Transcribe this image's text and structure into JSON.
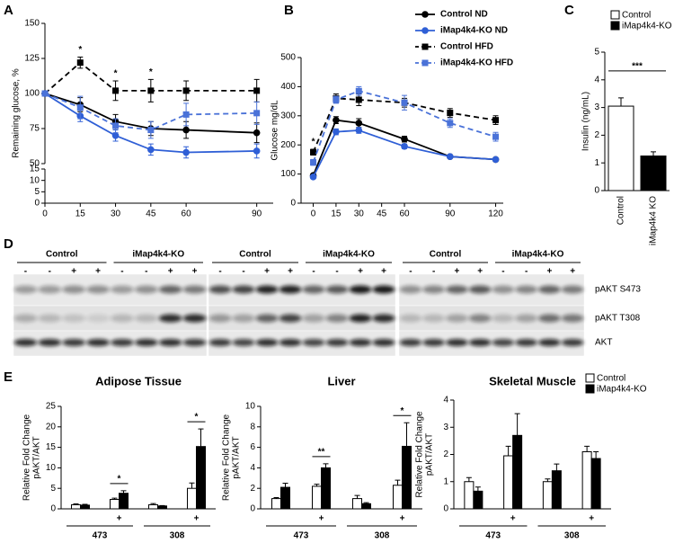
{
  "chart_data": [
    {
      "type": "line",
      "panel": "A",
      "ylabel": "Remaining glucose, %",
      "x": [
        0,
        15,
        30,
        45,
        60,
        90
      ],
      "xlim": [
        0,
        97
      ],
      "xticks": [
        0,
        15,
        30,
        45,
        60,
        90
      ],
      "ylim": [
        50,
        150
      ],
      "yticks": [
        50,
        75,
        100,
        125,
        150
      ],
      "ylim_lower": [
        0,
        15
      ],
      "yticks_lower": [
        0,
        5,
        10,
        15
      ],
      "series": [
        {
          "color": "#000000",
          "marker": "circle",
          "dash": false,
          "values": [
            100,
            92,
            80,
            75,
            74,
            72
          ],
          "errors": [
            0,
            5,
            5,
            5,
            6,
            7
          ]
        },
        {
          "color": "#2f5fd6",
          "marker": "circle",
          "dash": false,
          "values": [
            100,
            84,
            70,
            60,
            58,
            59
          ],
          "errors": [
            0,
            4,
            4,
            4,
            4,
            5
          ]
        },
        {
          "color": "#000000",
          "marker": "square",
          "dash": true,
          "values": [
            100,
            122,
            102,
            102,
            102,
            102
          ],
          "errors": [
            0,
            4,
            7,
            8,
            7,
            8
          ]
        },
        {
          "color": "#4a72d8",
          "marker": "square",
          "dash": true,
          "values": [
            100,
            90,
            77,
            74,
            85,
            86
          ],
          "errors": [
            0,
            8,
            5,
            6,
            8,
            8
          ]
        }
      ],
      "significance": [
        {
          "label": "*",
          "x": 15
        },
        {
          "label": "*",
          "x": 30
        },
        {
          "label": "*",
          "x": 45
        }
      ]
    },
    {
      "type": "line",
      "panel": "B",
      "ylabel": "Glucose mg/dL",
      "x": [
        0,
        15,
        30,
        60,
        90,
        120
      ],
      "xlim": [
        -8,
        125
      ],
      "xticks": [
        0,
        15,
        30,
        45,
        60,
        90,
        120
      ],
      "ylim": [
        0,
        500
      ],
      "yticks": [
        0,
        100,
        200,
        300,
        400,
        500
      ],
      "legend": "top-right",
      "series": [
        {
          "name": "Control ND",
          "color": "#000000",
          "marker": "circle",
          "dash": false,
          "values": [
            95,
            285,
            275,
            220,
            160,
            150
          ],
          "errors": [
            5,
            12,
            15,
            10,
            5,
            5
          ]
        },
        {
          "name": "iMap4k4-KO ND",
          "color": "#2f5fd6",
          "marker": "circle",
          "dash": false,
          "values": [
            90,
            245,
            250,
            195,
            160,
            150
          ],
          "errors": [
            5,
            10,
            10,
            8,
            5,
            5
          ]
        },
        {
          "name": "Control HFD",
          "color": "#000000",
          "marker": "square",
          "dash": true,
          "values": [
            175,
            360,
            355,
            345,
            310,
            285
          ],
          "errors": [
            10,
            15,
            20,
            15,
            15,
            15
          ]
        },
        {
          "name": "iMap4k4-KO HFD",
          "color": "#4a72d8",
          "marker": "square",
          "dash": true,
          "values": [
            140,
            355,
            385,
            345,
            275,
            228
          ],
          "errors": [
            10,
            12,
            15,
            25,
            15,
            15
          ]
        }
      ],
      "significance": [
        {
          "label": "*",
          "x": 0
        }
      ]
    },
    {
      "type": "bar",
      "panel": "C",
      "ylabel": "Insulin (ng/mL)",
      "categories": [
        "Control",
        "iMap4k4 KO"
      ],
      "ylim": [
        0,
        5
      ],
      "yticks": [
        0,
        1,
        2,
        3,
        4,
        5
      ],
      "legend": "top-right",
      "series": [
        {
          "name": "Control",
          "color": "#ffffff",
          "values": [
            3.05,
            null
          ],
          "errors": [
            0.3,
            null
          ]
        },
        {
          "name": "iMap4k4-KO",
          "color": "#000000",
          "values": [
            null,
            1.25
          ],
          "errors": [
            null,
            0.15
          ]
        }
      ],
      "significance": [
        {
          "label": "***",
          "from": 0,
          "to": 1
        }
      ]
    },
    {
      "type": "bar",
      "panel": "E",
      "title": "Adipose Tissue",
      "ylabel": [
        "Relative Fold Change",
        "pAKT/AKT"
      ],
      "categories": [
        null,
        "+",
        null,
        "+"
      ],
      "groups": [
        "473",
        "308"
      ],
      "ylim": [
        0,
        25
      ],
      "yticks": [
        0,
        5,
        10,
        15,
        20,
        25
      ],
      "series": [
        {
          "color": "#ffffff",
          "values": [
            1.0,
            2.3,
            1.0,
            5.0
          ],
          "errors": [
            0.2,
            0.3,
            0.3,
            1.3
          ]
        },
        {
          "color": "#000000",
          "values": [
            0.9,
            3.8,
            0.7,
            15.2
          ],
          "errors": [
            0.2,
            0.6,
            0.1,
            4.3
          ]
        }
      ],
      "significance": [
        {
          "label": "*",
          "from": 1,
          "to": 1
        },
        {
          "label": "*",
          "from": 3,
          "to": 3
        }
      ]
    },
    {
      "type": "bar",
      "title": "Liver",
      "ylabel": [
        "Relative Fold Change",
        "pAKT/AKT"
      ],
      "categories": [
        null,
        "+",
        null,
        "+"
      ],
      "groups": [
        "473",
        "308"
      ],
      "ylim": [
        0,
        10
      ],
      "yticks": [
        0,
        2,
        4,
        6,
        8,
        10
      ],
      "series": [
        {
          "color": "#ffffff",
          "values": [
            1.0,
            2.2,
            1.0,
            2.3
          ],
          "errors": [
            0.1,
            0.2,
            0.3,
            0.5
          ]
        },
        {
          "color": "#000000",
          "values": [
            2.1,
            4.0,
            0.5,
            6.1
          ],
          "errors": [
            0.4,
            0.4,
            0.1,
            2.3
          ]
        }
      ],
      "significance": [
        {
          "label": "**",
          "from": 1,
          "to": 1
        },
        {
          "label": "*",
          "from": 3,
          "to": 3
        }
      ]
    },
    {
      "type": "bar",
      "title": "Skeletal Muscle",
      "ylabel": [
        "Relative Fold Change",
        "pAKT/AKT"
      ],
      "categories": [
        null,
        "+",
        null,
        "+"
      ],
      "groups": [
        "473",
        "308"
      ],
      "ylim": [
        0,
        4
      ],
      "yticks": [
        0,
        1,
        2,
        3,
        4
      ],
      "legend": "top-right",
      "series": [
        {
          "name": "Control",
          "color": "#ffffff",
          "values": [
            1.0,
            1.95,
            1.0,
            2.1
          ],
          "errors": [
            0.15,
            0.35,
            0.1,
            0.2
          ]
        },
        {
          "name": "iMap4k4-KO",
          "color": "#000000",
          "values": [
            0.65,
            2.7,
            1.4,
            1.85
          ],
          "errors": [
            0.15,
            0.8,
            0.25,
            0.25
          ]
        }
      ]
    }
  ],
  "blot": {
    "panel": "D",
    "blocks": [
      {
        "groups": [
          "Control",
          "iMap4k4-KO"
        ],
        "lanes": [
          "-",
          "-",
          "+",
          "+",
          "-",
          "-",
          "+",
          "+"
        ]
      },
      {
        "groups": [
          "Control",
          "iMap4k4-KO"
        ],
        "lanes": [
          "-",
          "-",
          "+",
          "+",
          "-",
          "-",
          "+",
          "+"
        ]
      },
      {
        "groups": [
          "Control",
          "iMap4k4-KO"
        ],
        "lanes": [
          "-",
          "-",
          "+",
          "+",
          "-",
          "-",
          "+",
          "+"
        ]
      }
    ],
    "rows": [
      "pAKT S473",
      "pAKT T308",
      "AKT"
    ]
  }
}
